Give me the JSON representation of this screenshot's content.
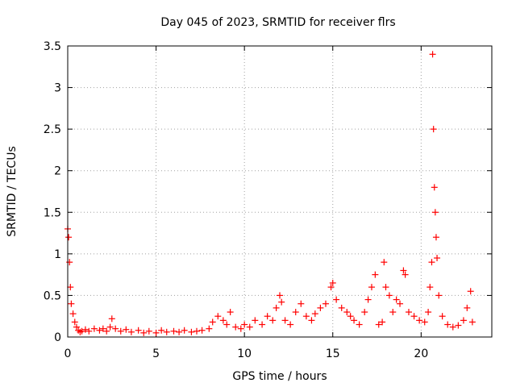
{
  "chart_data": {
    "type": "scatter",
    "title": "Day 045 of 2023, SRMTID for receiver flrs",
    "xlabel": "GPS time / hours",
    "ylabel": "SRMTID / TECUs",
    "xlim": [
      0,
      24
    ],
    "ylim": [
      0,
      3.5
    ],
    "x_ticks": [
      0,
      5,
      10,
      15,
      20
    ],
    "x_tick_labels": [
      "0",
      "5",
      "10",
      "15",
      "20"
    ],
    "y_ticks": [
      0,
      0.5,
      1,
      1.5,
      2,
      2.5,
      3,
      3.5
    ],
    "y_tick_labels": [
      "0",
      "0.5",
      "1",
      "1.5",
      "2",
      "2.5",
      "3",
      "3.5"
    ],
    "grid": true,
    "marker": "+",
    "series": [
      {
        "name": "SRMTID flrs",
        "color": "#ff0000",
        "x": [
          0.0,
          0.05,
          0.1,
          0.15,
          0.2,
          0.3,
          0.4,
          0.5,
          0.6,
          0.7,
          0.8,
          1.0,
          1.2,
          1.5,
          1.8,
          2.0,
          2.2,
          2.4,
          2.5,
          2.7,
          3.0,
          3.3,
          3.6,
          4.0,
          4.3,
          4.6,
          5.0,
          5.3,
          5.6,
          6.0,
          6.3,
          6.6,
          7.0,
          7.3,
          7.6,
          8.0,
          8.2,
          8.5,
          8.8,
          9.0,
          9.2,
          9.5,
          9.8,
          10.0,
          10.3,
          10.6,
          11.0,
          11.3,
          11.6,
          11.8,
          12.0,
          12.1,
          12.3,
          12.6,
          12.9,
          13.2,
          13.5,
          13.8,
          14.0,
          14.3,
          14.6,
          14.9,
          15.0,
          15.2,
          15.5,
          15.8,
          16.0,
          16.2,
          16.5,
          16.8,
          17.0,
          17.2,
          17.4,
          17.6,
          17.8,
          17.9,
          18.0,
          18.2,
          18.4,
          18.6,
          18.8,
          19.0,
          19.1,
          19.3,
          19.6,
          19.9,
          20.2,
          20.4,
          20.5,
          20.6,
          20.65,
          20.7,
          20.75,
          20.8,
          20.85,
          20.9,
          21.0,
          21.2,
          21.5,
          21.8,
          22.1,
          22.4,
          22.6,
          22.8,
          22.9
        ],
        "y": [
          1.3,
          1.2,
          0.9,
          0.6,
          0.4,
          0.28,
          0.18,
          0.12,
          0.08,
          0.06,
          0.07,
          0.09,
          0.07,
          0.1,
          0.08,
          0.1,
          0.07,
          0.12,
          0.22,
          0.1,
          0.07,
          0.09,
          0.06,
          0.08,
          0.05,
          0.07,
          0.05,
          0.08,
          0.06,
          0.07,
          0.06,
          0.08,
          0.06,
          0.07,
          0.08,
          0.1,
          0.18,
          0.25,
          0.2,
          0.15,
          0.3,
          0.12,
          0.1,
          0.15,
          0.12,
          0.2,
          0.15,
          0.25,
          0.2,
          0.35,
          0.5,
          0.42,
          0.2,
          0.15,
          0.3,
          0.4,
          0.25,
          0.2,
          0.28,
          0.35,
          0.4,
          0.6,
          0.65,
          0.45,
          0.35,
          0.3,
          0.25,
          0.2,
          0.15,
          0.3,
          0.45,
          0.6,
          0.75,
          0.15,
          0.18,
          0.9,
          0.6,
          0.5,
          0.3,
          0.45,
          0.4,
          0.8,
          0.75,
          0.3,
          0.25,
          0.2,
          0.18,
          0.3,
          0.6,
          0.9,
          3.4,
          2.5,
          1.8,
          1.5,
          1.2,
          0.95,
          0.5,
          0.25,
          0.15,
          0.12,
          0.14,
          0.2,
          0.35,
          0.55,
          0.18
        ]
      }
    ]
  }
}
